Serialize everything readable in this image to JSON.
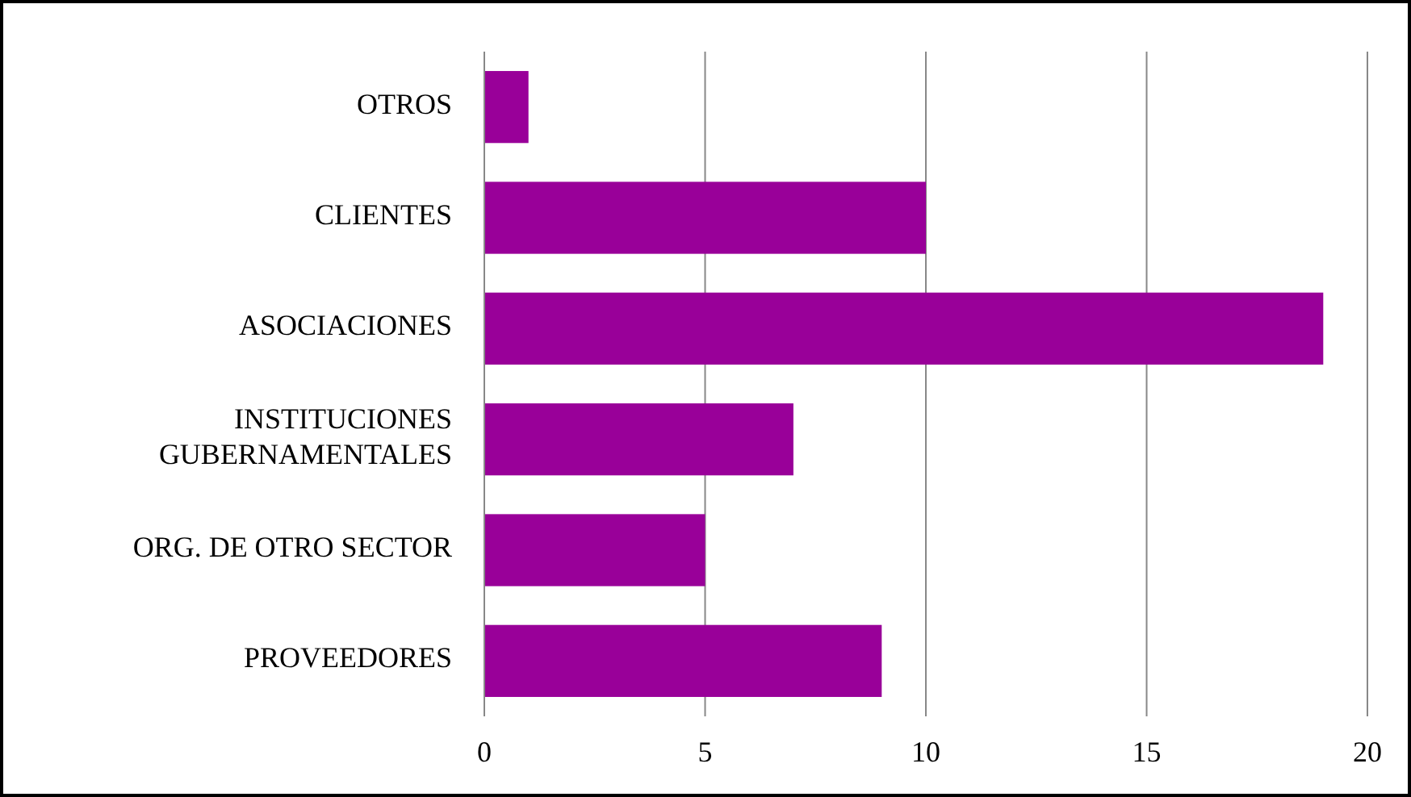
{
  "chart_data": {
    "type": "bar",
    "orientation": "horizontal",
    "categories": [
      "OTROS",
      "CLIENTES",
      "ASOCIACIONES",
      "INSTITUCIONES GUBERNAMENTALES",
      "ORG. DE OTRO SECTOR",
      "PROVEEDORES"
    ],
    "values": [
      1,
      10,
      19,
      7,
      5,
      9
    ],
    "color": "#990099",
    "xlim": [
      0,
      20
    ],
    "xticks": [
      0,
      5,
      10,
      15,
      20
    ],
    "grid": "x"
  }
}
